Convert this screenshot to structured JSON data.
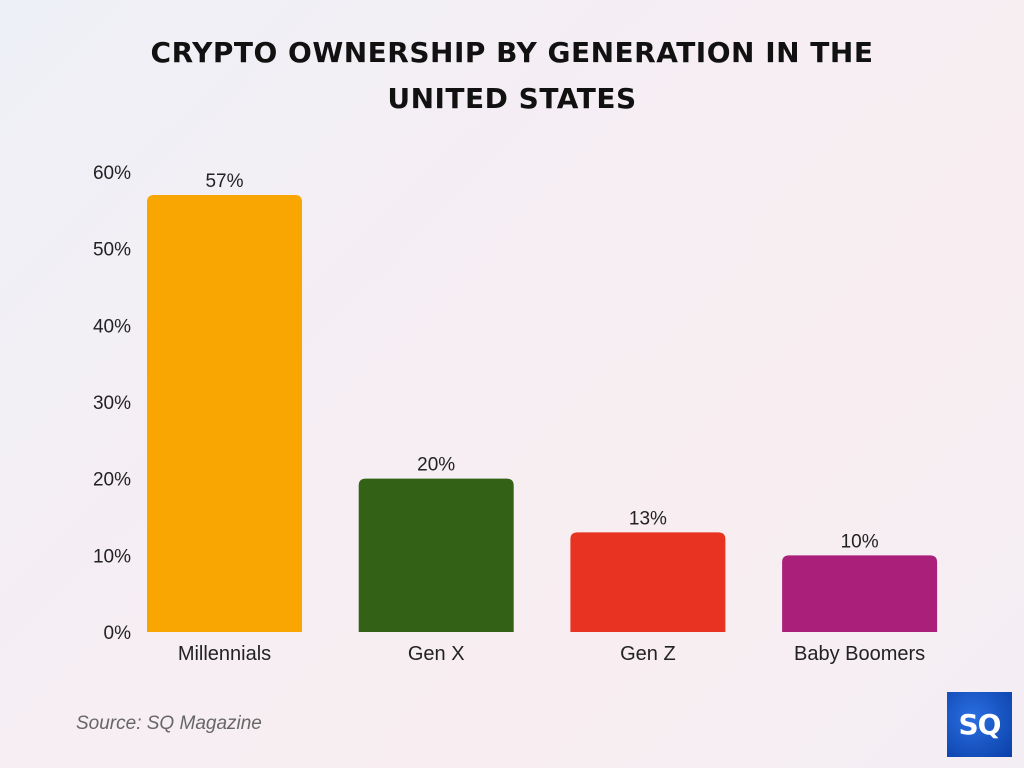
{
  "chart_data": {
    "type": "bar",
    "title_lines": [
      "CRYPTO OWNERSHIP BY GENERATION IN THE",
      "UNITED STATES"
    ],
    "categories": [
      "Millennials",
      "Gen X",
      "Gen Z",
      "Baby Boomers"
    ],
    "values": [
      57,
      20,
      13,
      10
    ],
    "data_labels": [
      "57%",
      "20%",
      "13%",
      "10%"
    ],
    "colors": [
      "#F9A602",
      "#336115",
      "#E83323",
      "#A91F7A"
    ],
    "yticks": [
      0,
      10,
      20,
      30,
      40,
      50,
      60
    ],
    "ytick_labels": [
      "0%",
      "10%",
      "20%",
      "30%",
      "40%",
      "50%",
      "60%"
    ],
    "ylim": [
      0,
      60
    ],
    "xlabel": "",
    "ylabel": "",
    "grid": false
  },
  "source": "Source: SQ Magazine",
  "logo_text": "SQ"
}
